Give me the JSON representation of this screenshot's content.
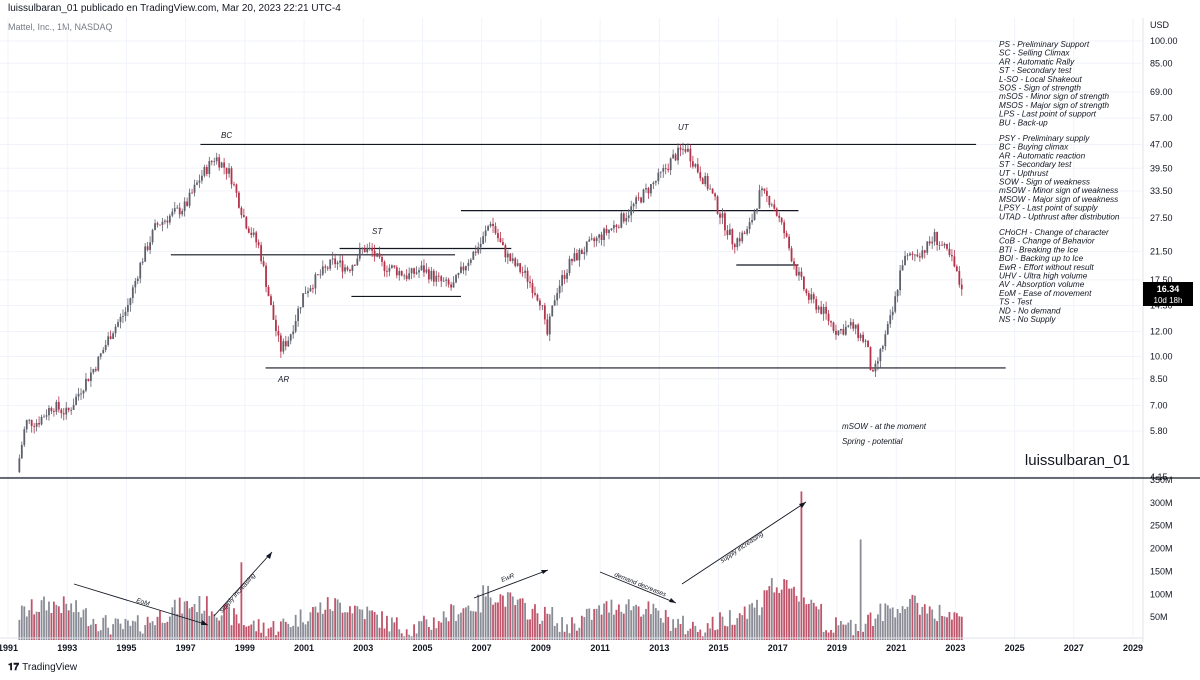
{
  "header": {
    "publisher_line": "luissulbaran_01 publicado en TradingView.com, Mar 20, 2023 22:21 UTC-4",
    "symbol_line": "Mattel, Inc., 1M, NASDAQ",
    "currency": "USD",
    "watermark": "luissulbaran_01",
    "brand": "TradingView"
  },
  "price_badge": {
    "price": "16.34",
    "countdown": "10d 18h",
    "color": "#000000"
  },
  "colors": {
    "up": "#5d606b",
    "down": "#b2334a",
    "vol_up": "#8a8d96",
    "vol_down": "#c0546a"
  },
  "legend_groups": [
    [
      "PS - Preliminary Support",
      "SC - Selling Climax",
      "AR - Automatic Rally",
      "ST - Secondary test",
      "L-SO - Local Shakeout",
      "SOS - Sign of strength",
      "mSOS - Minor sign of strength",
      "MSOS - Major sign of strength",
      "LPS - Last point of support",
      "BU - Back-up"
    ],
    [
      "PSY - Preliminary supply",
      "BC - Buying climax",
      "AR - Automatic reaction",
      "ST - Secondary test",
      "UT - Upthrust",
      "SOW - Sign of weakness",
      "mSOW - Minor sign of weakness",
      "MSOW - Major sign of weakness",
      "LPSY - Last point of supply",
      "UTAD - Upthrust after distribution"
    ],
    [
      "CHoCH - Change of character",
      "CoB - Change of Behavior",
      "BTI - Breaking the Ice",
      "BOI - Backing up to Ice",
      "EwR - Effort without result",
      "UHV - Ultra high volume",
      "AV - Absorption volume",
      "EoM - Ease of movement",
      "TS - Test",
      "ND - No demand",
      "NS - No Supply"
    ]
  ],
  "annotations": {
    "bc": "BC",
    "ar": "AR",
    "st": "ST",
    "ut": "UT",
    "msow": "mSOW - at the moment",
    "spring": "Spring - potential",
    "eom": "EoM",
    "supply1": "supply increasing",
    "ewr": "EwR",
    "demand": "demand decreases",
    "supply2": "supply increasing"
  },
  "chart_data": {
    "type": "candlestick",
    "title": "Mattel, Inc., 1M, NASDAQ",
    "y_scale": "log",
    "price_ticks": [
      "100.00",
      "85.00",
      "69.00",
      "57.00",
      "47.00",
      "39.50",
      "33.50",
      "27.50",
      "21.50",
      "17.50",
      "14.50",
      "12.00",
      "10.00",
      "8.50",
      "7.00",
      "5.80",
      "4.15"
    ],
    "volume_ticks": [
      "350M",
      "300M",
      "250M",
      "200M",
      "150M",
      "100M",
      "50M"
    ],
    "x_ticks": [
      "1991",
      "1993",
      "1995",
      "1997",
      "1999",
      "2001",
      "2003",
      "2005",
      "2007",
      "2009",
      "2011",
      "2013",
      "2015",
      "2017",
      "2019",
      "2021",
      "2023",
      "2025",
      "2027",
      "2029"
    ],
    "price_path": [
      [
        1991.3,
        4.3
      ],
      [
        1991.6,
        6.2
      ],
      [
        1992.0,
        6.2
      ],
      [
        1992.5,
        7.0
      ],
      [
        1993.0,
        6.6
      ],
      [
        1993.5,
        8.0
      ],
      [
        1994.0,
        9.5
      ],
      [
        1994.5,
        12.0
      ],
      [
        1995.0,
        14.0
      ],
      [
        1995.5,
        20.0
      ],
      [
        1996.0,
        26.0
      ],
      [
        1996.5,
        28.0
      ],
      [
        1997.0,
        30.0
      ],
      [
        1997.5,
        37.0
      ],
      [
        1998.0,
        43.0
      ],
      [
        1998.5,
        38.0
      ],
      [
        1999.0,
        27.0
      ],
      [
        1999.5,
        22.0
      ],
      [
        1999.9,
        14.0
      ],
      [
        2000.2,
        10.5
      ],
      [
        2000.5,
        11.5
      ],
      [
        2001.0,
        16.0
      ],
      [
        2001.5,
        18.0
      ],
      [
        2002.0,
        20.0
      ],
      [
        2002.5,
        19.0
      ],
      [
        2003.0,
        22.0
      ],
      [
        2003.3,
        21.5
      ],
      [
        2003.6,
        19.5
      ],
      [
        2004.0,
        19.0
      ],
      [
        2004.5,
        18.0
      ],
      [
        2005.0,
        19.0
      ],
      [
        2005.5,
        17.5
      ],
      [
        2006.0,
        16.5
      ],
      [
        2006.5,
        20.0
      ],
      [
        2007.0,
        23.0
      ],
      [
        2007.3,
        27.0
      ],
      [
        2007.7,
        22.0
      ],
      [
        2008.0,
        20.0
      ],
      [
        2008.5,
        18.0
      ],
      [
        2009.0,
        15.0
      ],
      [
        2009.2,
        11.5
      ],
      [
        2009.5,
        16.0
      ],
      [
        2010.0,
        20.0
      ],
      [
        2010.5,
        22.0
      ],
      [
        2011.0,
        24.0
      ],
      [
        2011.5,
        26.0
      ],
      [
        2012.0,
        29.0
      ],
      [
        2012.5,
        33.0
      ],
      [
        2013.0,
        37.0
      ],
      [
        2013.5,
        43.0
      ],
      [
        2013.9,
        46.0
      ],
      [
        2014.3,
        39.0
      ],
      [
        2014.7,
        34.0
      ],
      [
        2015.0,
        29.0
      ],
      [
        2015.5,
        23.0
      ],
      [
        2016.0,
        25.0
      ],
      [
        2016.4,
        33.0
      ],
      [
        2016.8,
        31.0
      ],
      [
        2017.2,
        25.0
      ],
      [
        2017.6,
        19.0
      ],
      [
        2018.0,
        15.5
      ],
      [
        2018.5,
        14.0
      ],
      [
        2019.0,
        12.0
      ],
      [
        2019.5,
        12.5
      ],
      [
        2020.0,
        11.0
      ],
      [
        2020.2,
        8.5
      ],
      [
        2020.5,
        10.5
      ],
      [
        2020.9,
        14.0
      ],
      [
        2021.2,
        20.0
      ],
      [
        2021.6,
        21.0
      ],
      [
        2022.0,
        22.0
      ],
      [
        2022.3,
        24.0
      ],
      [
        2022.6,
        22.0
      ],
      [
        2022.9,
        20.0
      ],
      [
        2023.2,
        16.34
      ]
    ],
    "levels": [
      {
        "price": 47.0,
        "from": 1997.5,
        "to": 2023.7
      },
      {
        "price": 21.0,
        "from": 1996.5,
        "to": 2003.3
      },
      {
        "price": 21.0,
        "from": 2003.3,
        "to": 2006.1
      },
      {
        "price": 9.2,
        "from": 1999.7,
        "to": 2024.7
      },
      {
        "price": 29.0,
        "from": 2006.3,
        "to": 2017.7
      },
      {
        "price": 22.0,
        "from": 2002.2,
        "to": 2008.0
      },
      {
        "price": 15.5,
        "from": 2002.6,
        "to": 2006.3
      },
      {
        "price": 19.5,
        "from": 2015.6,
        "to": 2017.7
      }
    ]
  }
}
